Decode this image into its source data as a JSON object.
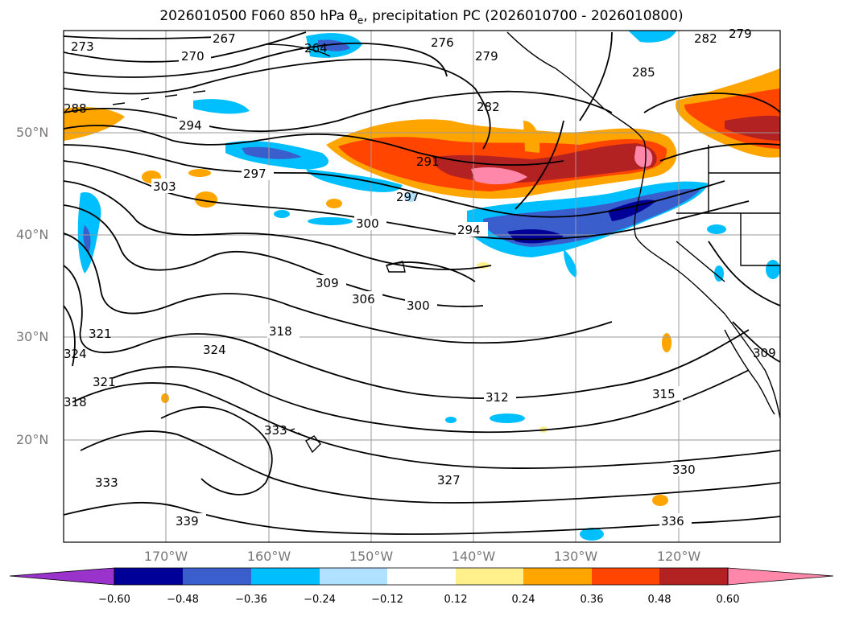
{
  "title": {
    "prefix": "2026010500 F060 850 hPa ",
    "symbol": "θ",
    "subscript": "e",
    "suffix": ", precipitation PC (2026010700 - 2026010800)"
  },
  "map": {
    "lat_labels": [
      "50°N",
      "40°N",
      "30°N",
      "20°N"
    ],
    "lon_labels": [
      "170°W",
      "160°W",
      "150°W",
      "140°W",
      "130°W",
      "120°W"
    ],
    "contour_labels": [
      "273",
      "267",
      "270",
      "264",
      "276",
      "279",
      "282",
      "279",
      "285",
      "288",
      "294",
      "282",
      "291",
      "297",
      "303",
      "297",
      "300",
      "294",
      "309",
      "306",
      "300",
      "318",
      "324",
      "321",
      "321",
      "324",
      "318",
      "312",
      "315",
      "309",
      "333",
      "327",
      "330",
      "336",
      "339",
      "333"
    ]
  },
  "colorbar": {
    "ticks": [
      "−0.60",
      "−0.48",
      "−0.36",
      "−0.24",
      "−0.12",
      "0.12",
      "0.24",
      "0.36",
      "0.48",
      "0.60"
    ],
    "colors": [
      "#9933cc",
      "#000099",
      "#3a5fcd",
      "#00bfff",
      "#b0e2ff",
      "#ffffff",
      "#fff08c",
      "#ffa500",
      "#ff4500",
      "#b22222",
      "#ff88aa",
      "#ff88aa"
    ]
  }
}
